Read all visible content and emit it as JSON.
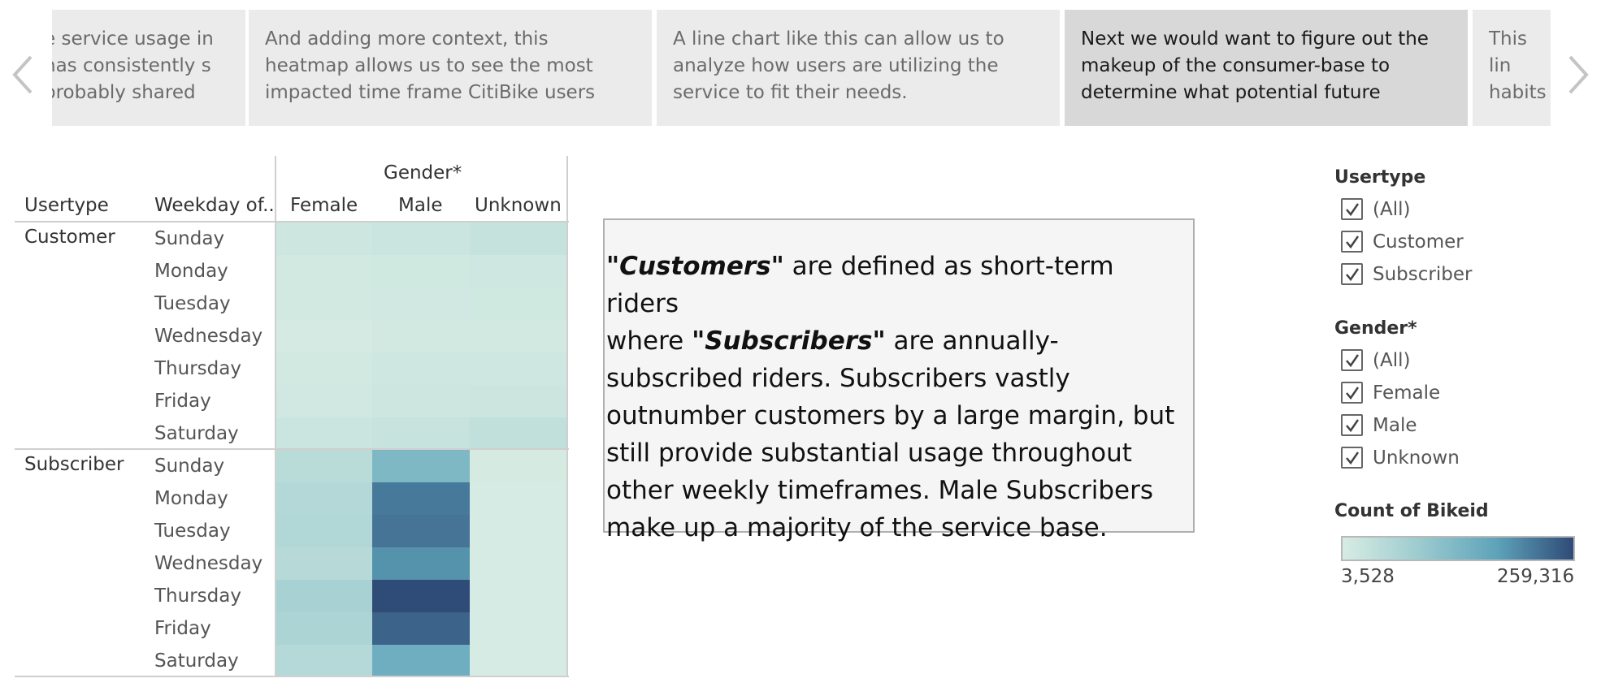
{
  "story": {
    "points": [
      {
        "caption": "e service usage in has consistently s probably shared",
        "active": false
      },
      {
        "caption": "And adding more context, this heatmap allows us to see the most impacted time frame CitiBike users utilize the service.",
        "active": false
      },
      {
        "caption": "A line chart like this can allow us to analyze how users are utilizing the service to fit their needs.",
        "active": false
      },
      {
        "caption": "Next we would want to figure out the makeup of the consumer-base to determine what potential future",
        "active": true
      },
      {
        "caption": "This lin habits into ho",
        "active": false
      }
    ]
  },
  "table": {
    "col_header_group": "Gender*",
    "row_headers": [
      "Usertype",
      "Weekday of.."
    ],
    "genders": [
      "Female",
      "Male",
      "Unknown"
    ],
    "weekdays": [
      "Sunday",
      "Monday",
      "Tuesday",
      "Wednesday",
      "Thursday",
      "Friday",
      "Saturday"
    ],
    "usertypes": [
      "Customer",
      "Subscriber"
    ]
  },
  "chart_data": {
    "type": "heatmap",
    "title": "",
    "x_group_label": "Gender*",
    "x": [
      "Female",
      "Male",
      "Unknown"
    ],
    "row_groups": [
      "Customer",
      "Subscriber"
    ],
    "y": [
      "Sunday",
      "Monday",
      "Tuesday",
      "Wednesday",
      "Thursday",
      "Friday",
      "Saturday"
    ],
    "color_measure": "Count of Bikeid",
    "color_range": [
      3528,
      259316
    ],
    "values": {
      "Customer": [
        [
          18000,
          22000,
          30000
        ],
        [
          12000,
          15000,
          16000
        ],
        [
          11000,
          14000,
          15000
        ],
        [
          8000,
          11000,
          12000
        ],
        [
          12000,
          16000,
          17000
        ],
        [
          13000,
          18000,
          19000
        ],
        [
          22000,
          26000,
          36000
        ]
      ],
      "Subscriber": [
        [
          45000,
          130000,
          6000
        ],
        [
          55000,
          215000,
          5000
        ],
        [
          58000,
          220000,
          5000
        ],
        [
          50000,
          190000,
          5000
        ],
        [
          72000,
          259316,
          5000
        ],
        [
          66000,
          235000,
          5000
        ],
        [
          52000,
          150000,
          5000
        ]
      ]
    }
  },
  "note": {
    "customers_term": "\"Customers\"",
    "line1_rest": " are defined as short-term riders",
    "line2_pre": "where ",
    "subscribers_term": "\"Subscribers\"",
    "line2_rest": " are annually-subscribed",
    "rest": "riders. Subscribers vastly outnumber customers by a large margin, but still provide substantial usage throughout other weekly timeframes. Male Subscribers make up a majority of the service base."
  },
  "filters": {
    "usertype": {
      "title": "Usertype",
      "options": [
        "(All)",
        "Customer",
        "Subscriber"
      ]
    },
    "gender": {
      "title": "Gender*",
      "options": [
        "(All)",
        "Female",
        "Male",
        "Unknown"
      ]
    }
  },
  "legend": {
    "title": "Count of Bikeid",
    "min_label": "3,528",
    "max_label": "259,316"
  },
  "colors": {
    "low": "#d7ece3",
    "mid": "#5ea3ba",
    "high": "#2f4b77"
  }
}
